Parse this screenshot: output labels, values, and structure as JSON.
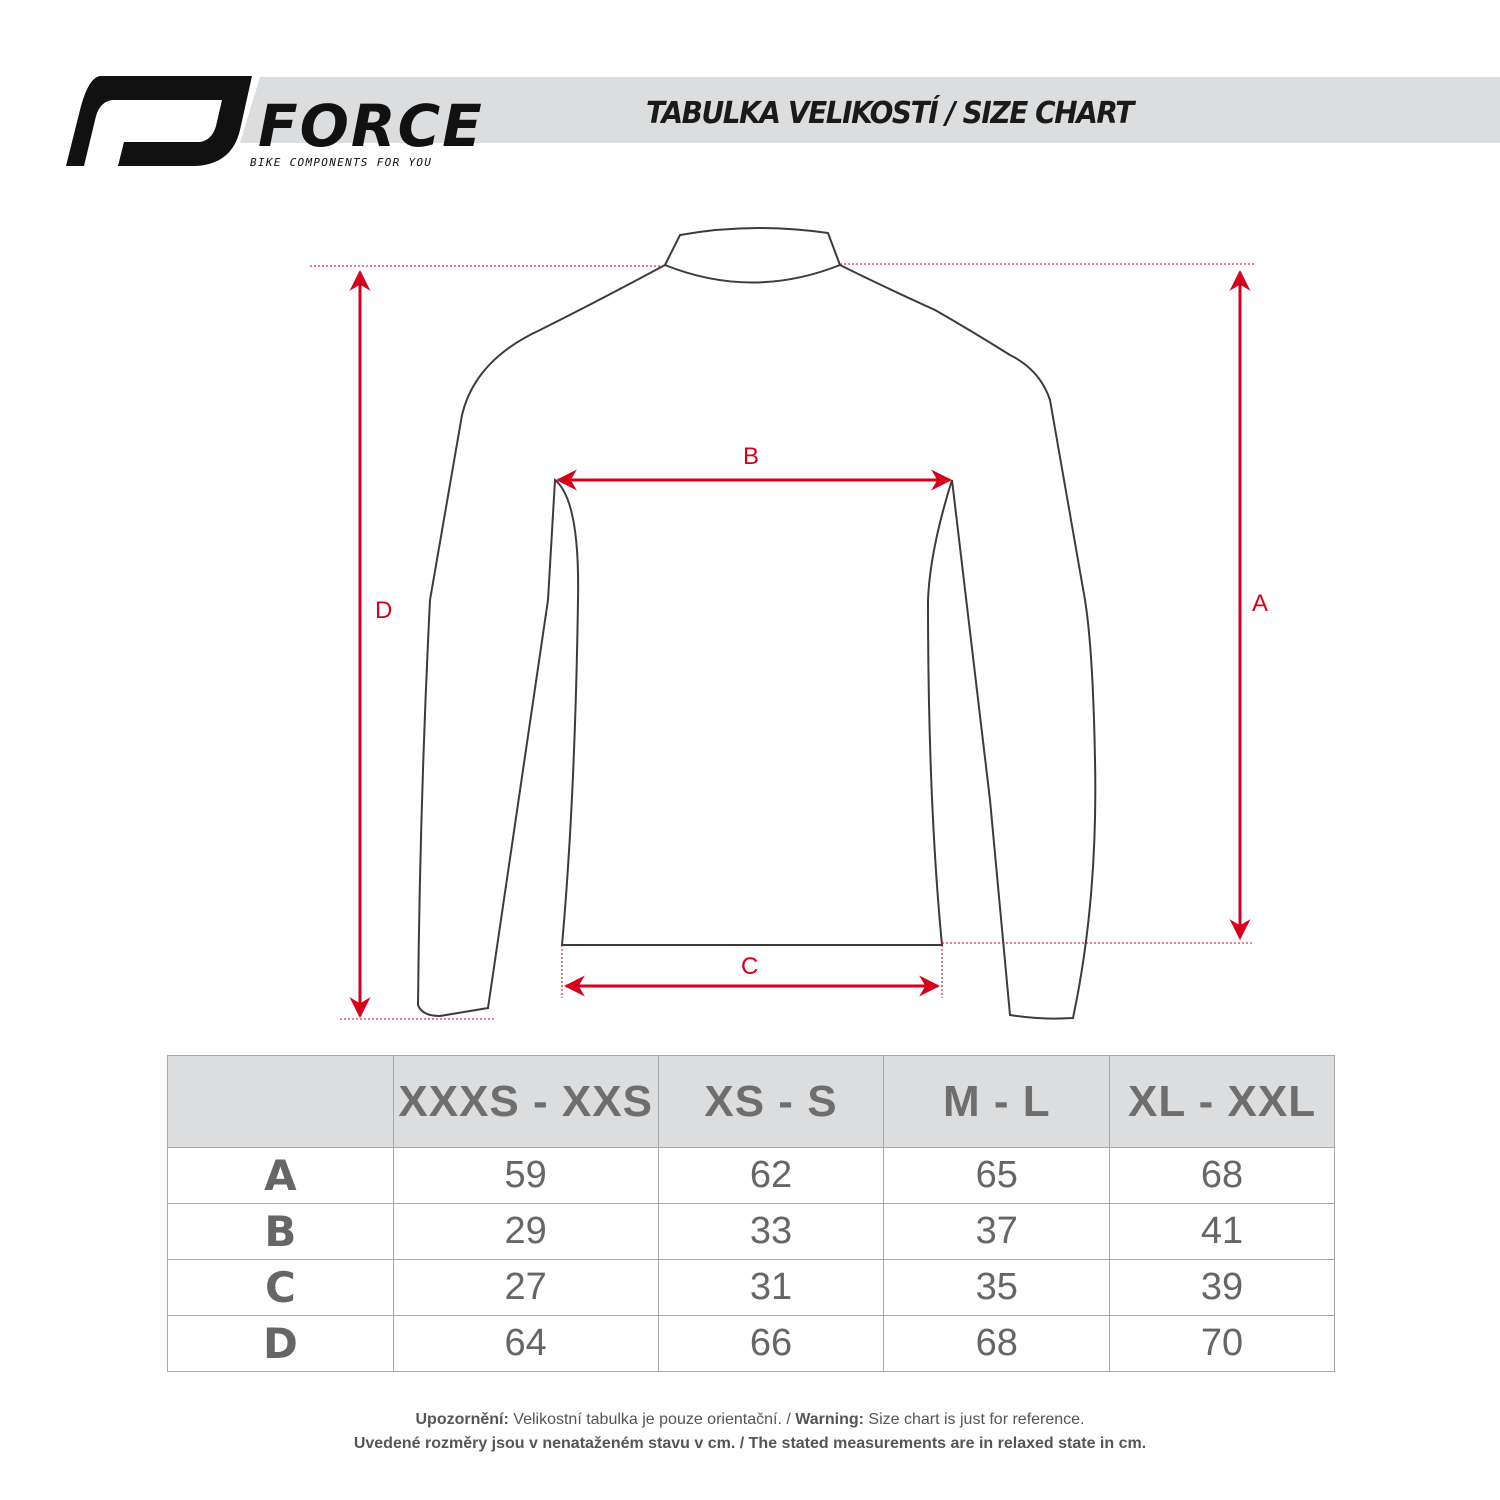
{
  "header": {
    "brand": "FORCE",
    "tagline": "BIKE COMPONENTS FOR YOU",
    "title": "TABULKA VELIKOSTÍ / SIZE CHART"
  },
  "diagram": {
    "labels": {
      "a": "A",
      "b": "B",
      "c": "C",
      "d": "D"
    },
    "colors": {
      "arrow": "#d6001c",
      "outline": "#3c3c3c"
    }
  },
  "table": {
    "columns": [
      "",
      "XXXS - XXS",
      "XS - S",
      "M - L",
      "XL - XXL"
    ],
    "rows": [
      {
        "label": "A",
        "values": [
          "59",
          "62",
          "65",
          "68"
        ]
      },
      {
        "label": "B",
        "values": [
          "29",
          "33",
          "37",
          "41"
        ]
      },
      {
        "label": "C",
        "values": [
          "27",
          "31",
          "35",
          "39"
        ]
      },
      {
        "label": "D",
        "values": [
          "64",
          "66",
          "68",
          "70"
        ]
      }
    ]
  },
  "footer": {
    "line1_bold1": "Upozornění:",
    "line1_text1": " Velikostní tabulka je pouze orientační. / ",
    "line1_bold2": "Warning:",
    "line1_text2": " Size chart is just for reference.",
    "line2": "Uvedené rozměry jsou v nenataženém stavu v cm. / The stated measurements are in relaxed state in cm."
  }
}
